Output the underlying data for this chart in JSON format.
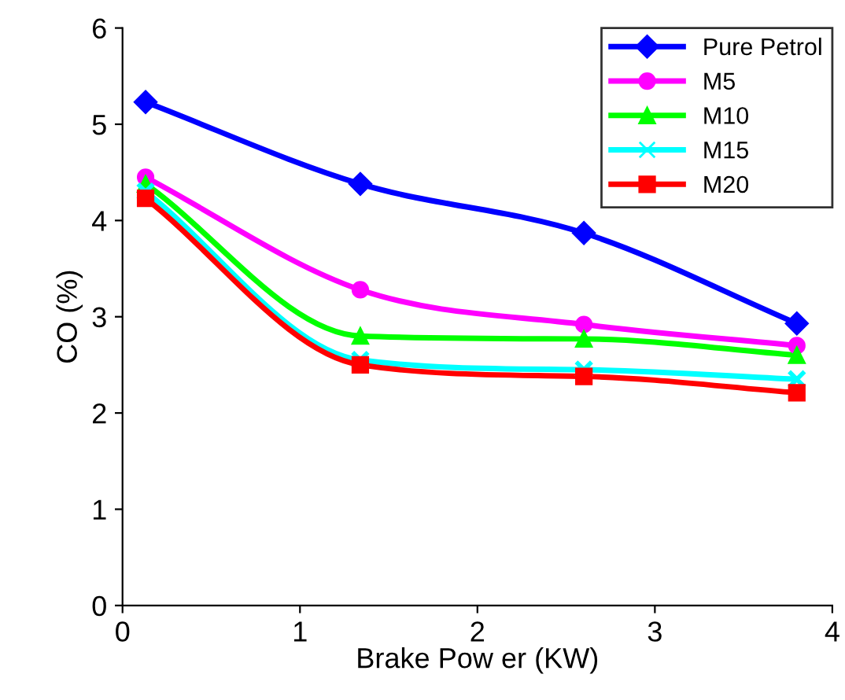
{
  "chart_data": {
    "type": "line",
    "xlabel": "Brake Pow er (KW)",
    "ylabel": "CO (%)",
    "xlim": [
      0,
      4
    ],
    "xticks": [
      0,
      1,
      2,
      3,
      4
    ],
    "ylim": [
      0,
      6
    ],
    "yticks": [
      0,
      1,
      2,
      3,
      4,
      5,
      6
    ],
    "x": [
      0.13,
      1.34,
      2.6,
      3.8
    ],
    "grid": false,
    "legend": "top right",
    "line_style": "solid",
    "series": [
      {
        "name": "Pure Petrol",
        "color": "#0000ff",
        "marker": "diamond",
        "values": [
          5.23,
          4.38,
          3.87,
          2.93
        ]
      },
      {
        "name": "M5",
        "color": "#ff00ff",
        "marker": "circle",
        "values": [
          4.45,
          3.28,
          2.92,
          2.7
        ]
      },
      {
        "name": "M10",
        "color": "#00ff00",
        "marker": "triangle",
        "values": [
          4.38,
          2.8,
          2.77,
          2.6
        ]
      },
      {
        "name": "M15",
        "color": "#00ffff",
        "marker": "cross",
        "values": [
          4.3,
          2.55,
          2.45,
          2.35
        ]
      },
      {
        "name": "M20",
        "color": "#ff0000",
        "marker": "square",
        "values": [
          4.23,
          2.5,
          2.38,
          2.21
        ]
      }
    ]
  }
}
